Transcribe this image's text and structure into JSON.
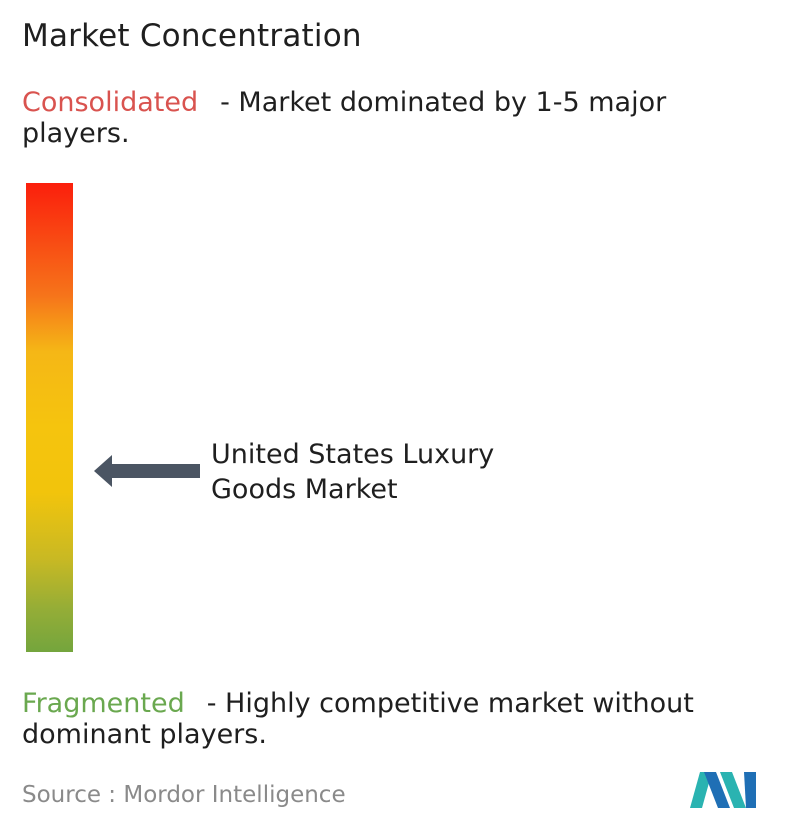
{
  "title": "Market Concentration",
  "consolidated": {
    "keyword": "Consolidated",
    "description": "- Market dominated by 1-5 major players."
  },
  "fragmented": {
    "keyword": "Fragmented",
    "description": "- Highly competitive market without dominant players."
  },
  "market": {
    "label_line1": "United States Luxury",
    "label_line2": "Goods Market"
  },
  "source": "Source :  Mordor Intelligence",
  "colors": {
    "consolidated": "#d9534f",
    "fragmented": "#6aa84f",
    "arrow": "#4b5563",
    "gradient_top": "#fb1f0c",
    "gradient_middle": "#f5c40e",
    "gradient_bottom": "#74a53d",
    "logo_teal": "#2ab3b1",
    "logo_blue": "#1f6fb5"
  },
  "icons": {
    "arrow": "left-arrow-icon",
    "logo": "mordor-intelligence-logo"
  }
}
